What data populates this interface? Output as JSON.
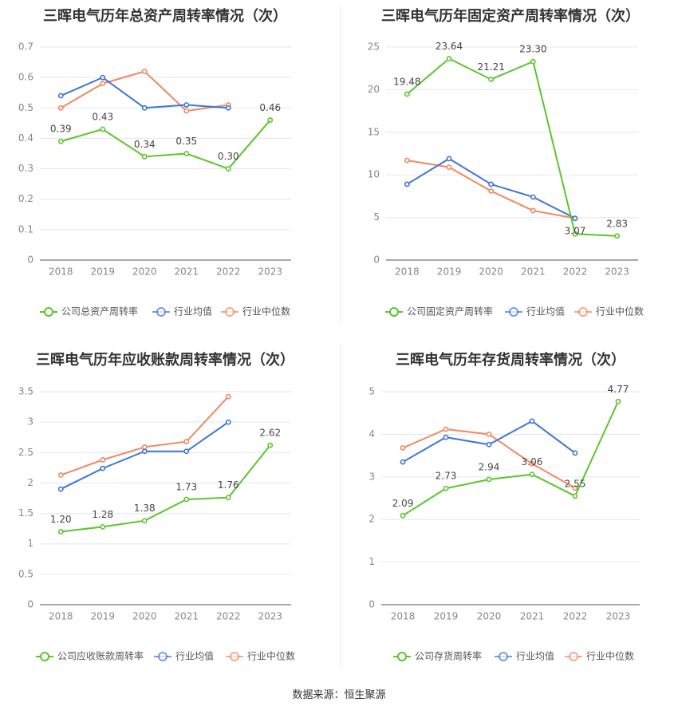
{
  "colors": {
    "company": "#5cc52e",
    "avg": "#3f74d8",
    "median": "#f2885f",
    "grid": "#e4e7ee",
    "axis": "#555555",
    "tick": "#888888",
    "label": "#444444"
  },
  "chart_data": [
    {
      "type": "line",
      "title": "三晖电气历年总资产周转率情况（次）",
      "categories": [
        "2018",
        "2019",
        "2020",
        "2021",
        "2022",
        "2023"
      ],
      "yticks": [
        "0",
        "0.1",
        "0.2",
        "0.3",
        "0.4",
        "0.5",
        "0.6",
        "0.7"
      ],
      "ylim": [
        0,
        0.7
      ],
      "legend_position": "bottom",
      "series": [
        {
          "name": "公司总资产周转率",
          "role": "company",
          "values": [
            0.39,
            0.43,
            0.34,
            0.35,
            0.3,
            0.46
          ],
          "labels": [
            "0.39",
            "0.43",
            "0.34",
            "0.35",
            "0.30",
            "0.46"
          ]
        },
        {
          "name": "行业均值",
          "role": "avg",
          "values": [
            0.54,
            0.6,
            0.5,
            0.51,
            0.5,
            null
          ]
        },
        {
          "name": "行业中位数",
          "role": "median",
          "values": [
            0.5,
            0.58,
            0.62,
            0.49,
            0.51,
            null
          ]
        }
      ]
    },
    {
      "type": "line",
      "title": "三晖电气历年固定资产周转率情况（次）",
      "categories": [
        "2018",
        "2019",
        "2020",
        "2021",
        "2022",
        "2023"
      ],
      "yticks": [
        "0",
        "5",
        "10",
        "15",
        "20",
        "25"
      ],
      "ylim": [
        0,
        25
      ],
      "legend_position": "bottom",
      "series": [
        {
          "name": "公司固定资产周转率",
          "role": "company",
          "values": [
            19.48,
            23.64,
            21.21,
            23.3,
            3.07,
            2.83
          ],
          "labels": [
            "19.48",
            "23.64",
            "21.21",
            "23.30",
            "3.07",
            "2.83"
          ]
        },
        {
          "name": "行业均值",
          "role": "avg",
          "values": [
            8.9,
            11.9,
            8.9,
            7.4,
            4.9,
            null
          ]
        },
        {
          "name": "行业中位数",
          "role": "median",
          "values": [
            11.7,
            10.9,
            8.1,
            5.8,
            4.9,
            null
          ]
        }
      ]
    },
    {
      "type": "line",
      "title": "三晖电气历年应收账款周转率情况（次）",
      "categories": [
        "2018",
        "2019",
        "2020",
        "2021",
        "2022",
        "2023"
      ],
      "yticks": [
        "0",
        "0.5",
        "1",
        "1.5",
        "2",
        "2.5",
        "3",
        "3.5"
      ],
      "ylim": [
        0,
        3.5
      ],
      "legend_position": "bottom",
      "series": [
        {
          "name": "公司应收账款周转率",
          "role": "company",
          "values": [
            1.2,
            1.28,
            1.38,
            1.73,
            1.76,
            2.62
          ],
          "labels": [
            "1.20",
            "1.28",
            "1.38",
            "1.73",
            "1.76",
            "2.62"
          ]
        },
        {
          "name": "行业均值",
          "role": "avg",
          "values": [
            1.9,
            2.24,
            2.52,
            2.52,
            3.0,
            null
          ]
        },
        {
          "name": "行业中位数",
          "role": "median",
          "values": [
            2.13,
            2.38,
            2.59,
            2.68,
            3.42,
            null
          ]
        }
      ]
    },
    {
      "type": "line",
      "title": "三晖电气历年存货周转率情况（次）",
      "categories": [
        "2018",
        "2019",
        "2020",
        "2021",
        "2022",
        "2023"
      ],
      "yticks": [
        "0",
        "1",
        "2",
        "3",
        "4",
        "5"
      ],
      "ylim": [
        0,
        5
      ],
      "legend_position": "bottom",
      "series": [
        {
          "name": "公司存货周转率",
          "role": "company",
          "values": [
            2.09,
            2.73,
            2.94,
            3.06,
            2.55,
            4.77
          ],
          "labels": [
            "2.09",
            "2.73",
            "2.94",
            "3.06",
            "2.55",
            "4.77"
          ]
        },
        {
          "name": "行业均值",
          "role": "avg",
          "values": [
            3.35,
            3.93,
            3.76,
            4.31,
            3.56,
            null
          ]
        },
        {
          "name": "行业中位数",
          "role": "median",
          "values": [
            3.68,
            4.12,
            4.0,
            3.31,
            2.74,
            null
          ]
        }
      ]
    }
  ],
  "footer": {
    "source": "数据来源：恒生聚源"
  }
}
